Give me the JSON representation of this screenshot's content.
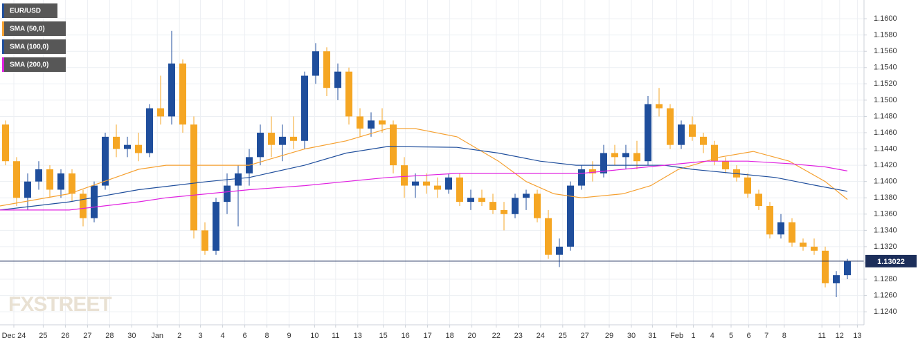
{
  "chart_data": {
    "type": "candlestick",
    "candles": {
      "name": "EUR/USD",
      "color": "#1f4e9c",
      "up_color": "#1f4e9c",
      "down_color": "#f5a623",
      "x": [
        0.5,
        1.5,
        2.5,
        3.5,
        4.5,
        5.5,
        6.5,
        7.5,
        8.5,
        9.5,
        10.5,
        11.5,
        12.5,
        13.5,
        14.5,
        15.5,
        16.5,
        17.5,
        18.5,
        19.5,
        20.5,
        21.5,
        22.5,
        23.5,
        24.5,
        25.5,
        26.5,
        27.5,
        28.5,
        29.5,
        30.5,
        31.5,
        32.5,
        33.5,
        34.5,
        35.5,
        36.5,
        37.5,
        38.5,
        39.5,
        40.5,
        41.5,
        42.5,
        43.5,
        44.5,
        45.5,
        46.5,
        47.5,
        48.5,
        49.5,
        50.5,
        51.5,
        52.5,
        53.5,
        54.5,
        55.5,
        56.5,
        57.5,
        58.5,
        59.5,
        60.5,
        61.5,
        62.5,
        63.5,
        64.5,
        65.5,
        66.5,
        67.5,
        68.5,
        69.5,
        70.5,
        71.5,
        72.5,
        73.5,
        74.5,
        75.5,
        76.5
      ],
      "open": [
        1.147,
        1.1425,
        1.138,
        1.14,
        1.1415,
        1.139,
        1.141,
        1.1385,
        1.1355,
        1.1395,
        1.1455,
        1.144,
        1.1445,
        1.1435,
        1.149,
        1.148,
        1.1545,
        1.147,
        1.134,
        1.1315,
        1.1375,
        1.1395,
        1.141,
        1.143,
        1.146,
        1.1445,
        1.1455,
        1.145,
        1.153,
        1.156,
        1.1515,
        1.1535,
        1.148,
        1.1465,
        1.1475,
        1.147,
        1.142,
        1.1395,
        1.14,
        1.1395,
        1.139,
        1.1405,
        1.1375,
        1.138,
        1.1375,
        1.1365,
        1.136,
        1.138,
        1.1385,
        1.1355,
        1.131,
        1.132,
        1.1395,
        1.1415,
        1.141,
        1.1435,
        1.143,
        1.1435,
        1.1425,
        1.1495,
        1.149,
        1.1445,
        1.147,
        1.1455,
        1.1445,
        1.1425,
        1.1415,
        1.1405,
        1.1385,
        1.137,
        1.1335,
        1.135,
        1.1325,
        1.132,
        1.1315,
        1.1275,
        1.1285
      ],
      "high": [
        1.1475,
        1.143,
        1.141,
        1.1425,
        1.142,
        1.1415,
        1.1415,
        1.139,
        1.14,
        1.146,
        1.147,
        1.1455,
        1.146,
        1.1495,
        1.153,
        1.1585,
        1.155,
        1.148,
        1.135,
        1.138,
        1.141,
        1.142,
        1.144,
        1.147,
        1.148,
        1.147,
        1.148,
        1.1535,
        1.157,
        1.1565,
        1.1545,
        1.154,
        1.149,
        1.1485,
        1.149,
        1.1475,
        1.143,
        1.141,
        1.141,
        1.1405,
        1.141,
        1.141,
        1.139,
        1.139,
        1.1385,
        1.1375,
        1.1385,
        1.139,
        1.139,
        1.1365,
        1.133,
        1.14,
        1.142,
        1.1425,
        1.1445,
        1.1445,
        1.1445,
        1.145,
        1.1505,
        1.1515,
        1.1495,
        1.1475,
        1.148,
        1.146,
        1.145,
        1.143,
        1.142,
        1.141,
        1.139,
        1.1375,
        1.136,
        1.1355,
        1.133,
        1.133,
        1.132,
        1.129,
        1.1305
      ],
      "low": [
        1.142,
        1.137,
        1.1365,
        1.139,
        1.138,
        1.138,
        1.1375,
        1.1345,
        1.135,
        1.139,
        1.143,
        1.143,
        1.1425,
        1.143,
        1.147,
        1.147,
        1.146,
        1.133,
        1.131,
        1.131,
        1.136,
        1.1345,
        1.1395,
        1.142,
        1.143,
        1.1425,
        1.144,
        1.144,
        1.152,
        1.1505,
        1.15,
        1.147,
        1.1455,
        1.1455,
        1.146,
        1.141,
        1.138,
        1.138,
        1.1385,
        1.138,
        1.1385,
        1.137,
        1.1365,
        1.137,
        1.136,
        1.134,
        1.1355,
        1.1365,
        1.135,
        1.1305,
        1.1295,
        1.1315,
        1.139,
        1.14,
        1.1405,
        1.142,
        1.1415,
        1.1415,
        1.142,
        1.148,
        1.144,
        1.144,
        1.145,
        1.1435,
        1.142,
        1.141,
        1.14,
        1.138,
        1.1365,
        1.133,
        1.133,
        1.132,
        1.1315,
        1.131,
        1.127,
        1.1258,
        1.128
      ],
      "close": [
        1.1425,
        1.138,
        1.14,
        1.1415,
        1.139,
        1.141,
        1.1385,
        1.1355,
        1.1395,
        1.1455,
        1.144,
        1.1445,
        1.1435,
        1.149,
        1.148,
        1.1545,
        1.147,
        1.134,
        1.1315,
        1.1375,
        1.1395,
        1.141,
        1.143,
        1.146,
        1.1445,
        1.1455,
        1.145,
        1.153,
        1.156,
        1.1515,
        1.1535,
        1.148,
        1.1465,
        1.1475,
        1.147,
        1.142,
        1.1395,
        1.14,
        1.1395,
        1.139,
        1.1405,
        1.1375,
        1.138,
        1.1375,
        1.1365,
        1.136,
        1.138,
        1.1385,
        1.1355,
        1.131,
        1.132,
        1.1395,
        1.1415,
        1.141,
        1.1435,
        1.143,
        1.1435,
        1.1425,
        1.1495,
        1.149,
        1.1445,
        1.147,
        1.1455,
        1.1445,
        1.1425,
        1.1415,
        1.1405,
        1.1385,
        1.137,
        1.1335,
        1.135,
        1.1325,
        1.132,
        1.1315,
        1.1275,
        1.1285,
        1.1302
      ]
    },
    "series": [
      {
        "name": "SMA (50,0)",
        "color": "#f5a030",
        "x": [
          0,
          6.25,
          12.5,
          15,
          18.75,
          22.5,
          27.5,
          31.25,
          35,
          37.5,
          41.25,
          45,
          47.5,
          50,
          52.5,
          56.25,
          58.75,
          61.25,
          65,
          68,
          71.25,
          74.5,
          76.5
        ],
        "values": [
          1.137,
          1.1385,
          1.1415,
          1.142,
          1.142,
          1.142,
          1.144,
          1.145,
          1.1465,
          1.1465,
          1.1455,
          1.1425,
          1.14,
          1.1385,
          1.138,
          1.1385,
          1.1395,
          1.1415,
          1.143,
          1.1437,
          1.1425,
          1.14,
          1.1378
        ]
      },
      {
        "name": "SMA (100,0)",
        "color": "#1f4e9c",
        "x": [
          0,
          6.25,
          12.5,
          18.75,
          22.5,
          27.5,
          31.25,
          35,
          41.25,
          45,
          48.75,
          52,
          56.25,
          60,
          62.5,
          66.25,
          70,
          73.75,
          76.5
        ],
        "values": [
          1.1365,
          1.1375,
          1.139,
          1.14,
          1.1405,
          1.142,
          1.1435,
          1.1443,
          1.1442,
          1.1435,
          1.1425,
          1.142,
          1.142,
          1.142,
          1.1415,
          1.141,
          1.1405,
          1.1395,
          1.1388
        ]
      },
      {
        "name": "SMA (200,0)",
        "color": "#e020e0",
        "x": [
          0,
          6.25,
          12.5,
          15,
          18.75,
          22.5,
          27.5,
          31.25,
          35,
          41.25,
          47.5,
          52.5,
          56.25,
          60,
          63.75,
          67.5,
          71.25,
          74.5,
          76.5
        ],
        "values": [
          1.1365,
          1.1365,
          1.1375,
          1.138,
          1.1385,
          1.139,
          1.1395,
          1.14,
          1.1405,
          1.141,
          1.141,
          1.141,
          1.1415,
          1.142,
          1.1425,
          1.1425,
          1.1422,
          1.1418,
          1.1413
        ]
      }
    ],
    "current_price": 1.13022,
    "current_price_color": "#1c2e5a",
    "watermark": "FXSTREET",
    "xlim": [
      0,
      78
    ],
    "ylim": [
      1.1224,
      1.1623
    ],
    "yticks": [
      {
        "value": 1.124,
        "label": "1.1240"
      },
      {
        "value": 1.126,
        "label": "1.1260"
      },
      {
        "value": 1.128,
        "label": "1.1280"
      },
      {
        "value": 1.13,
        "label": "1.1300"
      },
      {
        "value": 1.132,
        "label": "1.1320"
      },
      {
        "value": 1.134,
        "label": "1.1340"
      },
      {
        "value": 1.136,
        "label": "1.1360"
      },
      {
        "value": 1.138,
        "label": "1.1380"
      },
      {
        "value": 1.14,
        "label": "1.1400"
      },
      {
        "value": 1.142,
        "label": "1.1420"
      },
      {
        "value": 1.144,
        "label": "1.1440"
      },
      {
        "value": 1.146,
        "label": "1.1460"
      },
      {
        "value": 1.148,
        "label": "1.1480"
      },
      {
        "value": 1.15,
        "label": "1.1500"
      },
      {
        "value": 1.152,
        "label": "1.1520"
      },
      {
        "value": 1.154,
        "label": "1.1540"
      },
      {
        "value": 1.156,
        "label": "1.1560"
      },
      {
        "value": 1.158,
        "label": "1.1580"
      },
      {
        "value": 1.16,
        "label": "1.1600"
      }
    ],
    "xticks": [
      {
        "value": 1.25,
        "label": "Dec 24"
      },
      {
        "value": 3.9,
        "label": "25"
      },
      {
        "value": 5.9,
        "label": "26"
      },
      {
        "value": 7.9,
        "label": "27"
      },
      {
        "value": 9.9,
        "label": "28"
      },
      {
        "value": 11.9,
        "label": "30"
      },
      {
        "value": 14.2,
        "label": "Jan"
      },
      {
        "value": 16.2,
        "label": "2"
      },
      {
        "value": 18.1,
        "label": "3"
      },
      {
        "value": 20.1,
        "label": "4"
      },
      {
        "value": 22.1,
        "label": "6"
      },
      {
        "value": 24.1,
        "label": "8"
      },
      {
        "value": 26.1,
        "label": "9"
      },
      {
        "value": 28.4,
        "label": "10"
      },
      {
        "value": 30.3,
        "label": "11"
      },
      {
        "value": 32.3,
        "label": "13"
      },
      {
        "value": 34.6,
        "label": "15"
      },
      {
        "value": 36.6,
        "label": "16"
      },
      {
        "value": 38.6,
        "label": "17"
      },
      {
        "value": 40.6,
        "label": "18"
      },
      {
        "value": 42.6,
        "label": "20"
      },
      {
        "value": 44.8,
        "label": "22"
      },
      {
        "value": 46.8,
        "label": "23"
      },
      {
        "value": 48.8,
        "label": "24"
      },
      {
        "value": 50.8,
        "label": "25"
      },
      {
        "value": 52.8,
        "label": "27"
      },
      {
        "value": 55,
        "label": "29"
      },
      {
        "value": 57,
        "label": "30"
      },
      {
        "value": 58.9,
        "label": "31"
      },
      {
        "value": 61.1,
        "label": "Feb"
      },
      {
        "value": 62.6,
        "label": "1"
      },
      {
        "value": 64.3,
        "label": "4"
      },
      {
        "value": 66,
        "label": "5"
      },
      {
        "value": 67.6,
        "label": "6"
      },
      {
        "value": 69.2,
        "label": "7"
      },
      {
        "value": 70.8,
        "label": "8"
      },
      {
        "value": 74.2,
        "label": "11"
      },
      {
        "value": 75.8,
        "label": "12"
      },
      {
        "value": 77.4,
        "label": "13"
      }
    ],
    "grid": true
  }
}
